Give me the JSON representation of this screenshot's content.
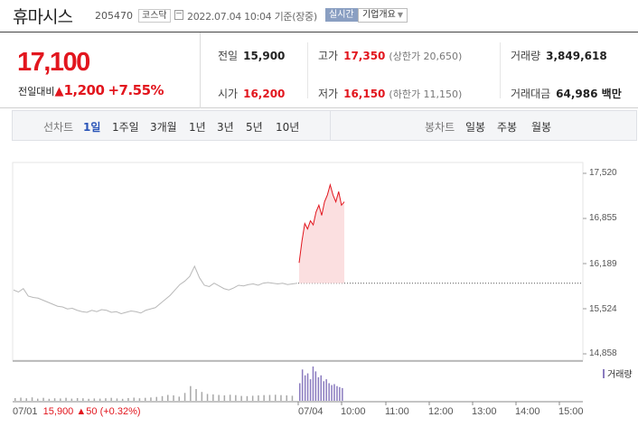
{
  "header": {
    "stock_name": "휴마시스",
    "stock_code": "205470",
    "market": "코스닥",
    "basis": "2022.07.04 10:04 기준(장중)",
    "realtime_badge": "실시간",
    "company_info_button": "기업개요",
    "icons": {
      "calendar": "calendar-icon",
      "dropdown": "chevron-down-icon"
    }
  },
  "summary": {
    "price": "17,100",
    "change_label": "전일대비",
    "change_arrow": "▲",
    "change": "1,200",
    "change_pct": "+7.55%",
    "prev_close_label": "전일",
    "prev_close": "15,900",
    "high_label": "고가",
    "high": "17,350",
    "upper_limit": "(상한가 20,650)",
    "volume_label": "거래량",
    "volume": "3,849,618",
    "open_label": "시가",
    "open": "16,200",
    "low_label": "저가",
    "low": "16,150",
    "lower_limit": "(하한가 11,150)",
    "value_label": "거래대금",
    "value": "64,986 백만"
  },
  "colors": {
    "up": "#e2161e",
    "selected_tab": "#2a55b8",
    "prev_line": "#b8b8b8",
    "today_line": "#e2161e",
    "today_fill": "#fbdfe0",
    "volume_prev": "#a8a8a8",
    "volume_today": "#8a7bbf"
  },
  "tabs": {
    "line_label": "선차트",
    "periods": [
      "1일",
      "1주일",
      "3개월",
      "1년",
      "3년",
      "5년",
      "10년"
    ],
    "selected": "1일",
    "candle_label": "봉차트",
    "candles": [
      "일봉",
      "주봉",
      "월봉"
    ]
  },
  "chart_data": {
    "type": "line",
    "ylabels": [
      "17,520",
      "16,855",
      "16,189",
      "15,524",
      "14,858"
    ],
    "ylim": [
      14858,
      17520
    ],
    "xlabels": [
      "07/01",
      "07/04",
      "10:00",
      "11:00",
      "12:00",
      "13:00",
      "14:00",
      "15:00"
    ],
    "prev_close": 15900,
    "series": [
      {
        "values": [
          15800,
          15770,
          15820,
          15710,
          15690,
          15680,
          15650,
          15620,
          15590,
          15560,
          15550,
          15520,
          15530,
          15500,
          15480,
          15470,
          15500,
          15480,
          15510,
          15500,
          15470,
          15480,
          15450,
          15470,
          15490,
          15480,
          15460,
          15500,
          15520,
          15540,
          15600,
          15660,
          15720,
          15800,
          15880,
          15930,
          16000,
          16150,
          15980,
          15870,
          15850,
          15900,
          15860,
          15820,
          15800,
          15830,
          15870,
          15860,
          15880,
          15890,
          15870,
          15900,
          15910,
          15900,
          15890,
          15900,
          15880,
          15890,
          15900
        ]
      },
      {
        "values": [
          16200,
          16520,
          16780,
          16700,
          16820,
          16760,
          16950,
          17050,
          16900,
          17100,
          17200,
          17350,
          17200,
          17100,
          17250,
          17050,
          17100
        ]
      }
    ],
    "volume": {
      "label": "거래량",
      "prev_day": [
        28,
        32,
        26,
        35,
        22,
        30,
        20,
        26,
        24,
        30,
        22,
        28,
        26,
        20,
        24,
        22,
        26,
        30,
        24,
        20,
        28,
        32,
        26,
        30,
        34,
        40,
        48,
        60,
        55,
        42,
        80,
        150,
        120,
        90,
        70,
        65,
        60,
        55,
        62,
        58,
        50,
        48,
        52,
        55,
        58,
        60,
        62,
        58,
        55,
        52
      ],
      "today": [
        180,
        320,
        260,
        280,
        220,
        350,
        300,
        240,
        260,
        200,
        220,
        180,
        160,
        170,
        150,
        140,
        130
      ]
    },
    "footer": {
      "date": "07/01",
      "close": "15,900",
      "arrow": "▲",
      "change": "50",
      "pct": "(+0.32%)"
    }
  }
}
